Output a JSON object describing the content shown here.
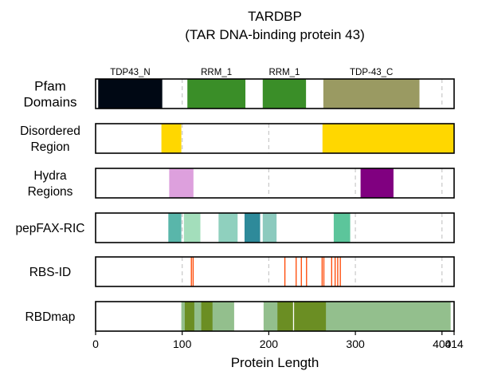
{
  "chart_data": {
    "type": "bar",
    "title": "TARDBP",
    "subtitle": "(TAR DNA-binding protein 43)",
    "xlabel": "Protein Length",
    "xlim": [
      0,
      414
    ],
    "x_ticks": [
      0,
      100,
      200,
      300,
      400,
      414
    ],
    "x_tick_labels": [
      "0",
      "100",
      "200",
      "300",
      "400",
      "414"
    ],
    "grid_lines": [
      100,
      200,
      300,
      400
    ],
    "tracks": [
      {
        "label": "Pfam\nDomains",
        "label_lines": [
          "Pfam",
          "Domains"
        ],
        "segments": [
          {
            "start": 3,
            "end": 77,
            "color": "#000814",
            "name": "TDP43_N"
          },
          {
            "start": 106,
            "end": 173,
            "color": "#3A8E28",
            "name": "RRM_1"
          },
          {
            "start": 193,
            "end": 243,
            "color": "#3A8E28",
            "name": "RRM_1"
          },
          {
            "start": 263,
            "end": 374,
            "color": "#9A9A62",
            "name": "TDP-43_C"
          }
        ]
      },
      {
        "label": "Disordered\nRegion",
        "label_lines": [
          "Disordered",
          "Region"
        ],
        "segments": [
          {
            "start": 76,
            "end": 99,
            "color": "#FFD700"
          },
          {
            "start": 262,
            "end": 414,
            "color": "#FFD700"
          }
        ]
      },
      {
        "label": "Hydra\nRegions",
        "label_lines": [
          "Hydra",
          "Regions"
        ],
        "segments": [
          {
            "start": 85,
            "end": 113,
            "color": "#DDA0DD"
          },
          {
            "start": 306,
            "end": 344,
            "color": "#800080"
          }
        ]
      },
      {
        "label": "pepFAX-RIC",
        "label_lines": [
          "pepFAX-RIC"
        ],
        "segments": [
          {
            "start": 84,
            "end": 99,
            "color": "#59B6AA"
          },
          {
            "start": 102,
            "end": 121,
            "color": "#A3DEBB"
          },
          {
            "start": 142,
            "end": 164,
            "color": "#8FD0BE"
          },
          {
            "start": 172,
            "end": 190,
            "color": "#2E8A9A"
          },
          {
            "start": 193,
            "end": 209,
            "color": "#8CCABE"
          },
          {
            "start": 275,
            "end": 294,
            "color": "#5CC59B"
          }
        ]
      },
      {
        "label": "RBS-ID",
        "label_lines": [
          "RBS-ID"
        ],
        "segments": [
          {
            "start": 110,
            "end": 111,
            "color": "#FF4500"
          },
          {
            "start": 112,
            "end": 113,
            "color": "#FF4500"
          },
          {
            "start": 218,
            "end": 219,
            "color": "#FF4500"
          },
          {
            "start": 231,
            "end": 232,
            "color": "#FF4500"
          },
          {
            "start": 237,
            "end": 238,
            "color": "#FF4500"
          },
          {
            "start": 243,
            "end": 244,
            "color": "#FF4500"
          },
          {
            "start": 261,
            "end": 262,
            "color": "#FF4500"
          },
          {
            "start": 263,
            "end": 264,
            "color": "#FF4500"
          },
          {
            "start": 272,
            "end": 273,
            "color": "#FF4500"
          },
          {
            "start": 276,
            "end": 277,
            "color": "#FF4500"
          },
          {
            "start": 279,
            "end": 280,
            "color": "#FF4500"
          },
          {
            "start": 282,
            "end": 283,
            "color": "#FF4500"
          }
        ]
      },
      {
        "label": "RBDmap",
        "label_lines": [
          "RBDmap"
        ],
        "segments": [
          {
            "start": 99,
            "end": 160,
            "color": "#93BF8D"
          },
          {
            "start": 103,
            "end": 114,
            "color": "#6B8E23"
          },
          {
            "start": 122,
            "end": 135,
            "color": "#6B8E23"
          },
          {
            "start": 194,
            "end": 410,
            "color": "#93BF8D"
          },
          {
            "start": 210,
            "end": 266,
            "color": "#6B8E23"
          },
          {
            "start": 228,
            "end": 229,
            "color": "#FFFFFF"
          }
        ]
      }
    ]
  }
}
